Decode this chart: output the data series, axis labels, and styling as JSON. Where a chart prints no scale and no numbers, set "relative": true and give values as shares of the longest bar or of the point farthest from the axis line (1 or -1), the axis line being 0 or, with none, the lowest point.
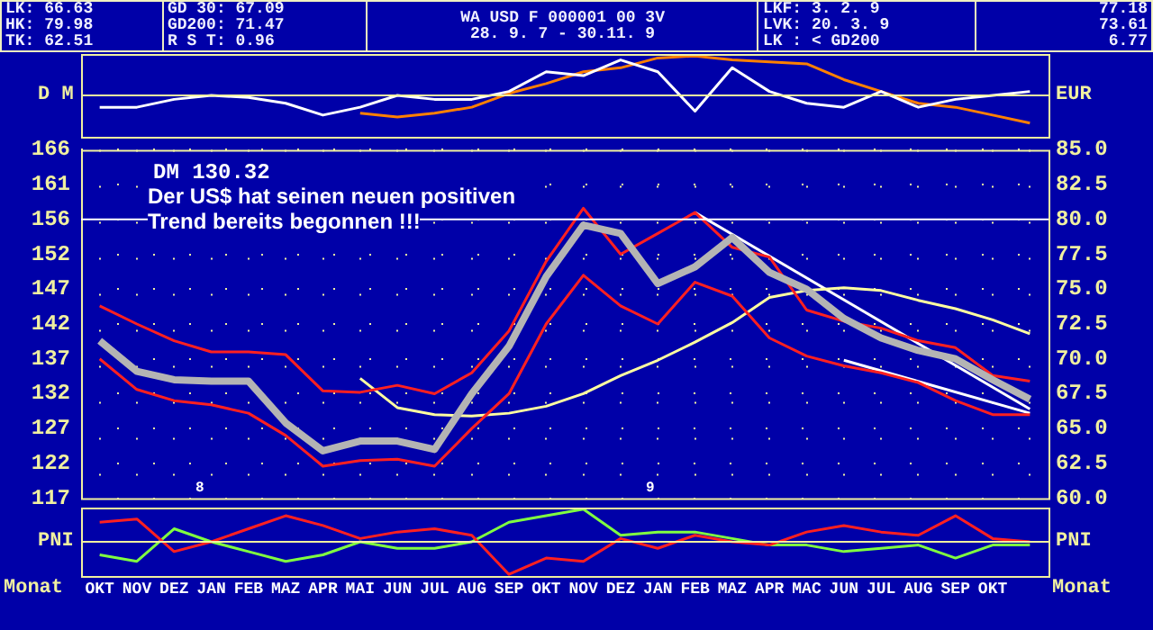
{
  "chart_data": [
    {
      "type": "other",
      "annotations": [
        "LK: 66.63",
        "HK: 79.98",
        "TK: 62.51",
        "GD 30: 67.09",
        "GD200: 71.47",
        "R S T: 0.96",
        "WA USD F 000001 00 3V",
        "28. 9. 7 - 30.11. 9",
        "LKF: 3. 2. 9",
        "LVK: 20. 3. 9",
        "LK : < GD200",
        "77.18",
        "73.61",
        "6.77"
      ]
    },
    {
      "type": "line",
      "relative": true,
      "tick_labels": false,
      "ylabel": "D M",
      "ref_lines": [
        {
          "axis": "y",
          "value": 0,
          "color": "#f0f0a0"
        }
      ],
      "y2label": "EUR",
      "categories": [
        null,
        null,
        null,
        null,
        null,
        null,
        null,
        null,
        null,
        null,
        null,
        null,
        null,
        null,
        null,
        null,
        null,
        null,
        null,
        null,
        null,
        null,
        null,
        null,
        null,
        null
      ],
      "series": [
        {
          "color": "#ffffff",
          "values": [
            -0.3,
            -0.3,
            -0.1,
            0.0,
            -0.05,
            -0.2,
            -0.5,
            -0.3,
            0.0,
            -0.1,
            -0.1,
            0.1,
            0.6,
            0.5,
            0.9,
            0.6,
            -0.4,
            0.7,
            0.1,
            -0.2,
            -0.3,
            0.1,
            -0.3,
            -0.1,
            0.0,
            0.1
          ]
        },
        {
          "color": "#ff8000",
          "values": [
            null,
            null,
            null,
            null,
            null,
            null,
            null,
            -0.45,
            -0.55,
            -0.45,
            -0.3,
            0.05,
            0.3,
            0.6,
            0.7,
            0.95,
            1.0,
            0.9,
            0.85,
            0.8,
            0.4,
            0.1,
            -0.2,
            -0.3,
            -0.5,
            -0.7
          ]
        }
      ]
    },
    {
      "type": "line",
      "tick_labels": "y",
      "grid": true,
      "categories": [
        null,
        null,
        null,
        null,
        null,
        null,
        null,
        null,
        null,
        null,
        null,
        null,
        null,
        null,
        null,
        null,
        null,
        null,
        null,
        null,
        null,
        null,
        null,
        null,
        null,
        null
      ],
      "ylim": [
        117.35,
        166.25
      ],
      "yticks": [
        {
          "value": 166.25,
          "label": "166"
        },
        {
          "value": 161.36,
          "label": "161"
        },
        {
          "value": 156.47,
          "label": "156"
        },
        {
          "value": 151.58,
          "label": "152"
        },
        {
          "value": 146.69,
          "label": "147"
        },
        {
          "value": 141.8,
          "label": "142"
        },
        {
          "value": 136.91,
          "label": "137"
        },
        {
          "value": 132.02,
          "label": "132"
        },
        {
          "value": 127.13,
          "label": "127"
        },
        {
          "value": 122.24,
          "label": "122"
        },
        {
          "value": 117.35,
          "label": "117"
        }
      ],
      "y2lim": [
        60,
        85
      ],
      "y2ticks": [
        {
          "value": 85,
          "label": "85.0"
        },
        {
          "value": 82.5,
          "label": "82.5"
        },
        {
          "value": 80,
          "label": "80.0"
        },
        {
          "value": 77.5,
          "label": "77.5"
        },
        {
          "value": 75,
          "label": "75.0"
        },
        {
          "value": 72.5,
          "label": "72.5"
        },
        {
          "value": 70,
          "label": "70.0"
        },
        {
          "value": 67.5,
          "label": "67.5"
        },
        {
          "value": 65,
          "label": "65.0"
        },
        {
          "value": 62.5,
          "label": "62.5"
        },
        {
          "value": 60,
          "label": "60.0"
        }
      ],
      "ref_lines": [
        {
          "axis": "y2",
          "value": 80,
          "color": "#ffffff"
        }
      ],
      "annotations": [
        "DM 130.32",
        "Der US$ hat seinen neuen positiven",
        "Trend bereits begonnen !!!",
        "8",
        "9"
      ],
      "series": [
        {
          "axis": "y2",
          "color": "#b4b4b4",
          "values": [
            71.3,
            69.1,
            68.5,
            68.4,
            68.4,
            65.4,
            63.4,
            64.1,
            64.1,
            63.5,
            67.5,
            70.9,
            75.9,
            79.6,
            79.0,
            75.4,
            76.6,
            78.7,
            76.2,
            75.0,
            72.9,
            71.5,
            70.6,
            70.0,
            68.5,
            67.1
          ]
        },
        {
          "axis": "y2",
          "color": "#ff2020",
          "values": [
            73.8,
            72.5,
            71.3,
            70.5,
            70.5,
            70.3,
            67.7,
            67.6,
            68.1,
            67.5,
            69.0,
            72.0,
            77.0,
            80.8,
            77.5,
            79.0,
            80.5,
            78.0,
            77.3,
            73.5,
            72.7,
            72.2,
            71.3,
            70.8,
            68.8,
            68.4
          ]
        },
        {
          "axis": "y2",
          "color": "#ff2020",
          "values": [
            70.0,
            67.8,
            67.0,
            66.7,
            66.1,
            64.5,
            62.3,
            62.7,
            62.8,
            62.3,
            65.0,
            67.5,
            72.5,
            76.0,
            73.8,
            72.5,
            75.5,
            74.5,
            71.5,
            70.2,
            69.5,
            69.0,
            68.3,
            67.0,
            66.0,
            66.0
          ]
        },
        {
          "axis": "y2",
          "color": "#ffffa0",
          "values": [
            null,
            null,
            null,
            null,
            null,
            null,
            null,
            68.6,
            66.5,
            66.0,
            65.9,
            66.1,
            66.6,
            67.5,
            68.8,
            69.9,
            71.2,
            72.6,
            74.4,
            74.9,
            75.1,
            74.9,
            74.2,
            73.6,
            72.8,
            71.8
          ]
        },
        {
          "axis": "y2",
          "color": "#ffffff",
          "values": [
            null,
            null,
            null,
            null,
            null,
            null,
            null,
            null,
            null,
            null,
            null,
            null,
            null,
            null,
            null,
            null,
            80.5,
            null,
            null,
            null,
            null,
            null,
            null,
            null,
            null,
            66.4
          ]
        },
        {
          "axis": "y2",
          "color": "#ffffff",
          "values": [
            null,
            null,
            null,
            null,
            null,
            null,
            null,
            null,
            null,
            null,
            null,
            null,
            null,
            null,
            null,
            null,
            null,
            null,
            null,
            null,
            69.9,
            null,
            null,
            null,
            null,
            66.1
          ]
        }
      ]
    },
    {
      "type": "line",
      "relative": true,
      "tick_labels": "x",
      "ylabel": "PNI",
      "ref_lines": [
        {
          "axis": "y",
          "value": 0,
          "color": "#f0f0a0"
        }
      ],
      "y2label": "PNI",
      "xlabel": "Monat",
      "categories": [
        "OKT",
        "NOV",
        "DEZ",
        "JAN",
        "FEB",
        "MAZ",
        "APR",
        "MAI",
        "JUN",
        "JUL",
        "AUG",
        "SEP",
        "OKT",
        "NOV",
        "DEZ",
        "JAN",
        "FEB",
        "MAZ",
        "APR",
        "MAC",
        "JUN",
        "JUL",
        "AUG",
        "SEP",
        "OKT",
        null
      ],
      "series": [
        {
          "color": "#ff2020",
          "values": [
            0.6,
            0.7,
            -0.3,
            0.0,
            0.4,
            0.8,
            0.5,
            0.1,
            0.3,
            0.4,
            0.2,
            -1.0,
            -0.5,
            -0.6,
            0.1,
            -0.2,
            0.2,
            0.0,
            -0.1,
            0.3,
            0.5,
            0.3,
            0.2,
            0.8,
            0.1,
            0.0
          ]
        },
        {
          "color": "#80ff40",
          "values": [
            -0.4,
            -0.6,
            0.4,
            0.0,
            -0.3,
            -0.6,
            -0.4,
            0.0,
            -0.2,
            -0.2,
            0.0,
            0.6,
            0.8,
            1.0,
            0.2,
            0.3,
            0.3,
            0.1,
            -0.1,
            -0.1,
            -0.3,
            -0.2,
            -0.1,
            -0.5,
            -0.1,
            -0.1
          ]
        }
      ]
    }
  ]
}
